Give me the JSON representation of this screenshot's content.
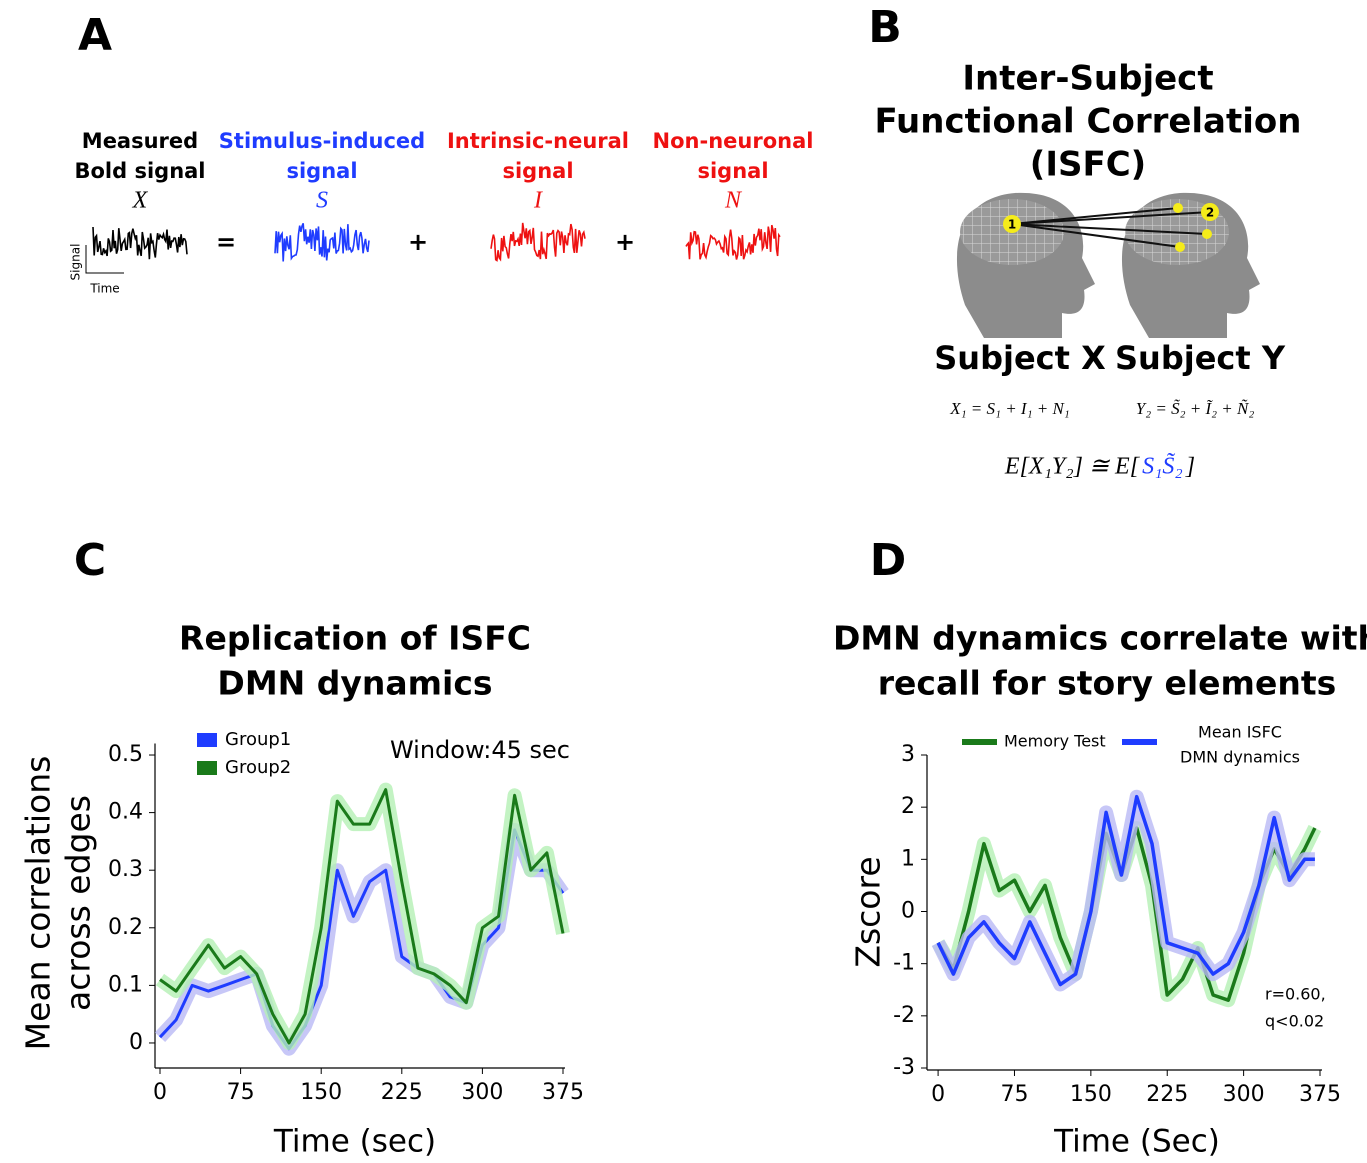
{
  "panels": [
    "A",
    "B",
    "C",
    "D"
  ],
  "panel_a": {
    "terms": [
      {
        "label": [
          "Measured",
          "Bold signal"
        ],
        "symbol": "X",
        "color": "#000000"
      },
      {
        "label": [
          "Stimulus-induced",
          "signal"
        ],
        "symbol": "S",
        "color": "#1f3cff"
      },
      {
        "label": [
          "Intrinsic-neural",
          "signal"
        ],
        "symbol": "I",
        "color": "#ee1111"
      },
      {
        "label": [
          "Non-neuronal",
          "signal"
        ],
        "symbol": "N",
        "color": "#ee1111"
      }
    ],
    "operators": [
      "=",
      "+",
      "+"
    ],
    "axis_y": "Signal",
    "axis_x": "Time"
  },
  "panel_b": {
    "title": [
      "Inter-Subject",
      "Functional Correlation",
      "(ISFC)"
    ],
    "nodes": [
      "1",
      "2"
    ],
    "subjects": [
      "Subject  X",
      "Subject  Y"
    ],
    "equations": [
      "X₁ = S₁ + I₁ + N₁",
      "Y₂ = S̃₂ + Ĩ₂ + Ñ₂"
    ],
    "expectation": [
      "E[X₁Y₂] ≅ E[",
      "S₁S̃₂",
      "]"
    ],
    "highlight_color": "#1f3cff"
  },
  "chart_data": [
    {
      "type": "line",
      "title": [
        "Replication of  ISFC",
        "DMN dynamics"
      ],
      "ylabel": [
        "Mean correlations",
        "across  edges"
      ],
      "xlabel": "Time (sec)",
      "annotation": [
        "Window:45 sec"
      ],
      "x": [
        0,
        15,
        30,
        45,
        60,
        75,
        90,
        105,
        120,
        135,
        150,
        165,
        180,
        195,
        210,
        225,
        240,
        255,
        270,
        285,
        300,
        315,
        330,
        345,
        360,
        375
      ],
      "series": [
        {
          "name": [
            "Group1"
          ],
          "color": "#1f3cff",
          "band_color": "#b9b9f5",
          "values": [
            0.01,
            0.04,
            0.1,
            0.09,
            0.1,
            0.11,
            0.12,
            0.03,
            -0.01,
            0.03,
            0.1,
            0.3,
            0.22,
            0.28,
            0.3,
            0.15,
            0.13,
            0.12,
            0.08,
            0.07,
            0.17,
            0.2,
            0.37,
            0.3,
            0.3,
            0.26
          ]
        },
        {
          "name": [
            "Group2"
          ],
          "color": "#1a7a1a",
          "band_color": "#b4f0b4",
          "values": [
            0.11,
            0.09,
            0.13,
            0.17,
            0.13,
            0.15,
            0.12,
            0.05,
            0.0,
            0.05,
            0.2,
            0.42,
            0.38,
            0.38,
            0.44,
            0.28,
            0.13,
            0.12,
            0.1,
            0.07,
            0.2,
            0.22,
            0.43,
            0.3,
            0.33,
            0.19
          ]
        }
      ],
      "xlim": [
        0,
        375
      ],
      "xticks": [
        0,
        75,
        150,
        225,
        300,
        375
      ],
      "ylim": [
        -0.04,
        0.52
      ],
      "yticks": [
        0,
        0.1,
        0.2,
        0.3,
        0.4,
        0.5
      ]
    },
    {
      "type": "line",
      "title": [
        "DMN dynamics correlate with",
        "recall for story elements"
      ],
      "ylabel": [
        "Zscore"
      ],
      "xlabel": "Time (Sec)",
      "annotation": [
        "r=0.60,",
        "q<0.02"
      ],
      "x": [
        0,
        15,
        30,
        45,
        60,
        75,
        90,
        105,
        120,
        135,
        150,
        165,
        180,
        195,
        210,
        225,
        240,
        255,
        270,
        285,
        300,
        315,
        330,
        345,
        360,
        370
      ],
      "series": [
        {
          "name": [
            "Memory Test"
          ],
          "color": "#1a7a1a",
          "band_color": "#b4f0b4",
          "values": [
            -0.6,
            -1.1,
            0.0,
            1.3,
            0.4,
            0.6,
            0.0,
            0.5,
            -0.5,
            -1.2,
            0.0,
            1.5,
            0.7,
            1.6,
            0.5,
            -1.6,
            -1.3,
            -0.7,
            -1.6,
            -1.7,
            -0.8,
            0.5,
            1.2,
            0.7,
            1.2,
            1.6
          ]
        },
        {
          "name": [
            "Mean ISFC",
            "DMN dynamics"
          ],
          "color": "#1f3cff",
          "band_color": "#b9b9f5",
          "values": [
            -0.6,
            -1.2,
            -0.5,
            -0.2,
            -0.6,
            -0.9,
            -0.2,
            -0.8,
            -1.4,
            -1.2,
            0.0,
            1.9,
            0.7,
            2.2,
            1.3,
            -0.6,
            -0.7,
            -0.8,
            -1.2,
            -1.0,
            -0.4,
            0.5,
            1.8,
            0.6,
            1.0,
            1.0
          ]
        }
      ],
      "xlim": [
        -5,
        375
      ],
      "xticks": [
        0,
        75,
        150,
        225,
        300,
        375
      ],
      "ylim": [
        -3,
        3
      ],
      "yticks": [
        -3,
        -2,
        -1,
        0,
        1,
        2,
        3
      ]
    }
  ]
}
